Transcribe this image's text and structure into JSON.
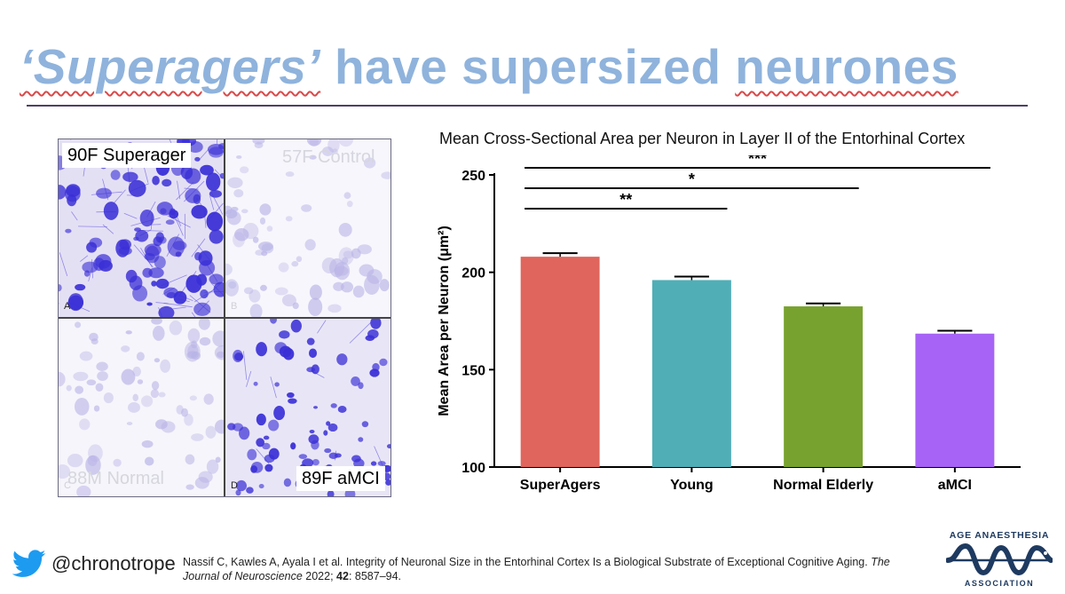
{
  "slide": {
    "title_part1": "‘Superagers’",
    "title_part2": " have supersized ",
    "title_part3": "neurones"
  },
  "micrographs": {
    "panels": [
      {
        "label": "90F Superager",
        "letter": "A",
        "staining": "heavy"
      },
      {
        "label": "57F Control",
        "letter": "B",
        "staining": "faint"
      },
      {
        "label": "88M Normal",
        "letter": "C",
        "staining": "faint"
      },
      {
        "label": "89F aMCI",
        "letter": "D",
        "staining": "medium"
      }
    ],
    "stain_color": "#3a2fd6"
  },
  "chart_data": {
    "type": "bar",
    "title": "Mean Cross-Sectional Area per Neuron in Layer II of the Entorhinal Cortex",
    "ylabel": "Mean Area per Neuron (μm²)",
    "categories": [
      "SuperAgers",
      "Young",
      "Normal Elderly",
      "aMCI"
    ],
    "values": [
      208,
      196,
      182.5,
      168.5
    ],
    "errors": [
      1.8,
      1.8,
      1.5,
      1.5
    ],
    "colors": [
      "#e0655c",
      "#50aeb7",
      "#78a22f",
      "#a663f5"
    ],
    "ylim": [
      100,
      250
    ],
    "yticks": [
      100,
      150,
      200,
      250
    ],
    "significance": [
      {
        "from": "SuperAgers",
        "to": "Young",
        "label": "**"
      },
      {
        "from": "SuperAgers",
        "to": "Normal Elderly",
        "label": "*"
      },
      {
        "from": "SuperAgers",
        "to": "aMCI",
        "label": "***"
      }
    ]
  },
  "footer": {
    "handle": "@chronotrope",
    "citation_authors": "Nassif C, Kawles A, Ayala I et al. Integrity of Neuronal Size in the Entorhinal Cortex Is a Biological Substrate of Exceptional Cognitive Aging. ",
    "citation_journal": "The Journal of Neuroscience",
    "citation_year": " 2022; ",
    "citation_volume": "42",
    "citation_pages": ": 8587–94.",
    "logo_top": "AGE ANAESTHESIA",
    "logo_bottom": "ASSOCIATION",
    "brand_color": "#1e3a60",
    "twitter_color": "#1d9bf0"
  }
}
